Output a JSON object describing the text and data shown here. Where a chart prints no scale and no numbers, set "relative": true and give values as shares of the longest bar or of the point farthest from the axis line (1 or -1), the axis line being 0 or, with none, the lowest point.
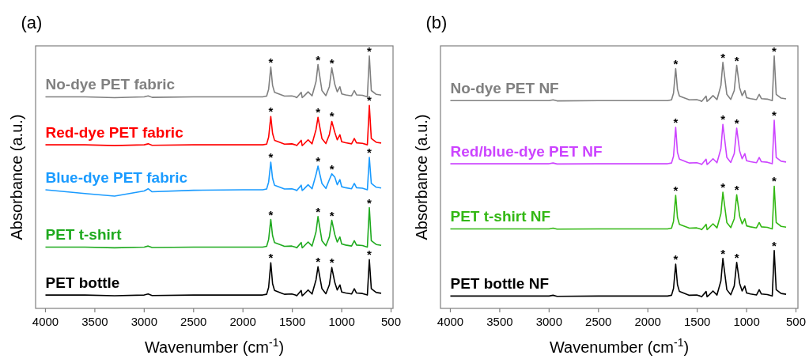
{
  "chart_data": [
    {
      "type": "line",
      "title": "(a)",
      "xlabel": "Wavenumber (cm$^{-1}$)",
      "ylabel": "Absorbance (a.u.)",
      "relative": true,
      "xlim": [
        4100,
        480
      ],
      "xticks": [
        4000,
        3500,
        3000,
        2500,
        2000,
        1500,
        1000,
        500
      ],
      "x": [
        4000,
        3600,
        3300,
        3000,
        2960,
        2920,
        2500,
        2000,
        1800,
        1760,
        1740,
        1718,
        1700,
        1680,
        1600,
        1580,
        1505,
        1470,
        1455,
        1410,
        1400,
        1385,
        1340,
        1300,
        1260,
        1240,
        1200,
        1160,
        1125,
        1100,
        1070,
        1045,
        1018,
        1000,
        960,
        900,
        872,
        850,
        790,
        740,
        720,
        700,
        650,
        600
      ],
      "series": [
        {
          "name": "No-dye PET fabric",
          "color": "#808080",
          "values": [
            0.838,
            0.838,
            0.835,
            0.838,
            0.842,
            0.836,
            0.838,
            0.838,
            0.838,
            0.841,
            0.868,
            0.956,
            0.883,
            0.856,
            0.844,
            0.841,
            0.842,
            0.838,
            0.835,
            0.856,
            0.835,
            0.84,
            0.858,
            0.842,
            0.898,
            0.966,
            0.863,
            0.843,
            0.878,
            0.953,
            0.888,
            0.858,
            0.878,
            0.85,
            0.846,
            0.842,
            0.863,
            0.846,
            0.844,
            0.838,
            1.0,
            0.863,
            0.848,
            0.845
          ]
        },
        {
          "name": "Red-dye PET fabric",
          "color": "#ff0000",
          "values": [
            0.648,
            0.648,
            0.645,
            0.648,
            0.652,
            0.646,
            0.648,
            0.648,
            0.648,
            0.651,
            0.678,
            0.76,
            0.693,
            0.666,
            0.654,
            0.651,
            0.652,
            0.648,
            0.645,
            0.666,
            0.645,
            0.65,
            0.668,
            0.652,
            0.708,
            0.757,
            0.673,
            0.653,
            0.688,
            0.741,
            0.698,
            0.668,
            0.688,
            0.66,
            0.656,
            0.652,
            0.673,
            0.656,
            0.654,
            0.648,
            0.804,
            0.673,
            0.658,
            0.655
          ]
        },
        {
          "name": "Blue-dye PET fabric",
          "color": "#1a9bff",
          "values": [
            0.47,
            0.455,
            0.445,
            0.465,
            0.474,
            0.462,
            0.468,
            0.47,
            0.47,
            0.473,
            0.5,
            0.579,
            0.515,
            0.488,
            0.476,
            0.473,
            0.474,
            0.47,
            0.467,
            0.488,
            0.467,
            0.472,
            0.49,
            0.474,
            0.53,
            0.564,
            0.495,
            0.475,
            0.51,
            0.533,
            0.52,
            0.49,
            0.51,
            0.482,
            0.478,
            0.474,
            0.495,
            0.478,
            0.476,
            0.47,
            0.598,
            0.495,
            0.48,
            0.477
          ]
        },
        {
          "name": "PET t-shirt",
          "color": "#1faa1f",
          "values": [
            0.243,
            0.243,
            0.24,
            0.243,
            0.247,
            0.241,
            0.243,
            0.243,
            0.243,
            0.246,
            0.273,
            0.352,
            0.288,
            0.261,
            0.249,
            0.246,
            0.247,
            0.243,
            0.24,
            0.261,
            0.24,
            0.245,
            0.263,
            0.247,
            0.303,
            0.364,
            0.268,
            0.248,
            0.283,
            0.349,
            0.293,
            0.263,
            0.283,
            0.255,
            0.251,
            0.247,
            0.268,
            0.251,
            0.249,
            0.243,
            0.399,
            0.268,
            0.253,
            0.25
          ]
        },
        {
          "name": "PET bottle",
          "color": "#000000",
          "values": [
            0.053,
            0.053,
            0.05,
            0.053,
            0.057,
            0.051,
            0.053,
            0.053,
            0.053,
            0.056,
            0.083,
            0.181,
            0.098,
            0.071,
            0.059,
            0.056,
            0.057,
            0.053,
            0.05,
            0.071,
            0.05,
            0.055,
            0.073,
            0.057,
            0.113,
            0.165,
            0.078,
            0.058,
            0.093,
            0.162,
            0.103,
            0.073,
            0.093,
            0.065,
            0.061,
            0.057,
            0.078,
            0.061,
            0.059,
            0.053,
            0.193,
            0.078,
            0.063,
            0.06
          ]
        }
      ],
      "annotations": [
        {
          "text": "*",
          "x": 1718,
          "y": 0.956
        },
        {
          "text": "*",
          "x": 1240,
          "y": 0.966
        },
        {
          "text": "*",
          "x": 1100,
          "y": 0.953
        },
        {
          "text": "*",
          "x": 720,
          "y": 1.0
        },
        {
          "text": "*",
          "x": 1718,
          "y": 0.76
        },
        {
          "text": "*",
          "x": 1240,
          "y": 0.757
        },
        {
          "text": "*",
          "x": 1100,
          "y": 0.741
        },
        {
          "text": "*",
          "x": 720,
          "y": 0.804
        },
        {
          "text": "*",
          "x": 1718,
          "y": 0.579
        },
        {
          "text": "*",
          "x": 1240,
          "y": 0.564
        },
        {
          "text": "*",
          "x": 1100,
          "y": 0.533
        },
        {
          "text": "*",
          "x": 720,
          "y": 0.598
        },
        {
          "text": "*",
          "x": 1718,
          "y": 0.352
        },
        {
          "text": "*",
          "x": 1240,
          "y": 0.364
        },
        {
          "text": "*",
          "x": 1100,
          "y": 0.349
        },
        {
          "text": "*",
          "x": 720,
          "y": 0.399
        },
        {
          "text": "*",
          "x": 1718,
          "y": 0.181
        },
        {
          "text": "*",
          "x": 1240,
          "y": 0.165
        },
        {
          "text": "*",
          "x": 1100,
          "y": 0.162
        },
        {
          "text": "*",
          "x": 720,
          "y": 0.193
        }
      ]
    },
    {
      "type": "line",
      "title": "(b)",
      "xlabel": "Wavenumber (cm$^{-1}$)",
      "ylabel": "Absorbance (a.u.)",
      "relative": true,
      "xlim": [
        4100,
        480
      ],
      "xticks": [
        4000,
        3500,
        3000,
        2500,
        2000,
        1500,
        1000,
        500
      ],
      "x": [
        4000,
        3600,
        3300,
        3000,
        2960,
        2920,
        2500,
        2000,
        1800,
        1760,
        1740,
        1718,
        1700,
        1680,
        1600,
        1580,
        1505,
        1470,
        1455,
        1410,
        1400,
        1385,
        1340,
        1300,
        1260,
        1240,
        1200,
        1160,
        1125,
        1100,
        1070,
        1045,
        1018,
        1000,
        960,
        900,
        872,
        850,
        790,
        740,
        720,
        700,
        650,
        600
      ],
      "series": [
        {
          "name": "No-dye PET NF",
          "color": "#808080",
          "values": [
            0.823,
            0.823,
            0.823,
            0.823,
            0.826,
            0.822,
            0.823,
            0.823,
            0.823,
            0.826,
            0.853,
            0.95,
            0.868,
            0.841,
            0.829,
            0.826,
            0.827,
            0.823,
            0.82,
            0.841,
            0.82,
            0.825,
            0.843,
            0.827,
            0.883,
            0.975,
            0.848,
            0.828,
            0.863,
            0.963,
            0.873,
            0.843,
            0.863,
            0.835,
            0.831,
            0.827,
            0.848,
            0.831,
            0.829,
            0.823,
            1.0,
            0.848,
            0.833,
            0.83
          ]
        },
        {
          "name": "Red/blue-dye PET NF",
          "color": "#cc44ff",
          "values": [
            0.573,
            0.573,
            0.573,
            0.573,
            0.576,
            0.572,
            0.573,
            0.573,
            0.573,
            0.576,
            0.603,
            0.717,
            0.618,
            0.591,
            0.579,
            0.576,
            0.577,
            0.573,
            0.57,
            0.591,
            0.57,
            0.575,
            0.593,
            0.577,
            0.633,
            0.729,
            0.598,
            0.578,
            0.613,
            0.714,
            0.623,
            0.593,
            0.613,
            0.585,
            0.581,
            0.577,
            0.598,
            0.581,
            0.579,
            0.573,
            0.745,
            0.598,
            0.583,
            0.58
          ]
        },
        {
          "name": "PET t-shirt NF",
          "color": "#33b814",
          "values": [
            0.315,
            0.315,
            0.315,
            0.315,
            0.318,
            0.314,
            0.315,
            0.315,
            0.315,
            0.318,
            0.345,
            0.448,
            0.36,
            0.333,
            0.321,
            0.318,
            0.319,
            0.315,
            0.312,
            0.333,
            0.312,
            0.317,
            0.335,
            0.319,
            0.375,
            0.46,
            0.34,
            0.32,
            0.355,
            0.45,
            0.365,
            0.335,
            0.355,
            0.327,
            0.323,
            0.319,
            0.34,
            0.323,
            0.321,
            0.315,
            0.484,
            0.34,
            0.325,
            0.322
          ]
        },
        {
          "name": "PET bottle NF",
          "color": "#000000",
          "values": [
            0.049,
            0.049,
            0.049,
            0.049,
            0.052,
            0.048,
            0.049,
            0.049,
            0.049,
            0.052,
            0.079,
            0.175,
            0.094,
            0.067,
            0.055,
            0.052,
            0.053,
            0.049,
            0.046,
            0.067,
            0.046,
            0.051,
            0.069,
            0.053,
            0.109,
            0.198,
            0.074,
            0.054,
            0.089,
            0.182,
            0.099,
            0.069,
            0.089,
            0.061,
            0.057,
            0.053,
            0.074,
            0.057,
            0.055,
            0.049,
            0.229,
            0.074,
            0.059,
            0.056
          ]
        }
      ],
      "annotations": [
        {
          "text": "*",
          "x": 1718,
          "y": 0.95
        },
        {
          "text": "*",
          "x": 1240,
          "y": 0.975
        },
        {
          "text": "*",
          "x": 1100,
          "y": 0.963
        },
        {
          "text": "*",
          "x": 720,
          "y": 1.0
        },
        {
          "text": "*",
          "x": 1718,
          "y": 0.717
        },
        {
          "text": "*",
          "x": 1240,
          "y": 0.729
        },
        {
          "text": "*",
          "x": 1100,
          "y": 0.714
        },
        {
          "text": "*",
          "x": 720,
          "y": 0.745
        },
        {
          "text": "*",
          "x": 1718,
          "y": 0.448
        },
        {
          "text": "*",
          "x": 1240,
          "y": 0.46
        },
        {
          "text": "*",
          "x": 1100,
          "y": 0.45
        },
        {
          "text": "*",
          "x": 720,
          "y": 0.484
        },
        {
          "text": "*",
          "x": 1718,
          "y": 0.175
        },
        {
          "text": "*",
          "x": 1240,
          "y": 0.198
        },
        {
          "text": "*",
          "x": 1100,
          "y": 0.182
        },
        {
          "text": "*",
          "x": 720,
          "y": 0.229
        }
      ]
    }
  ]
}
